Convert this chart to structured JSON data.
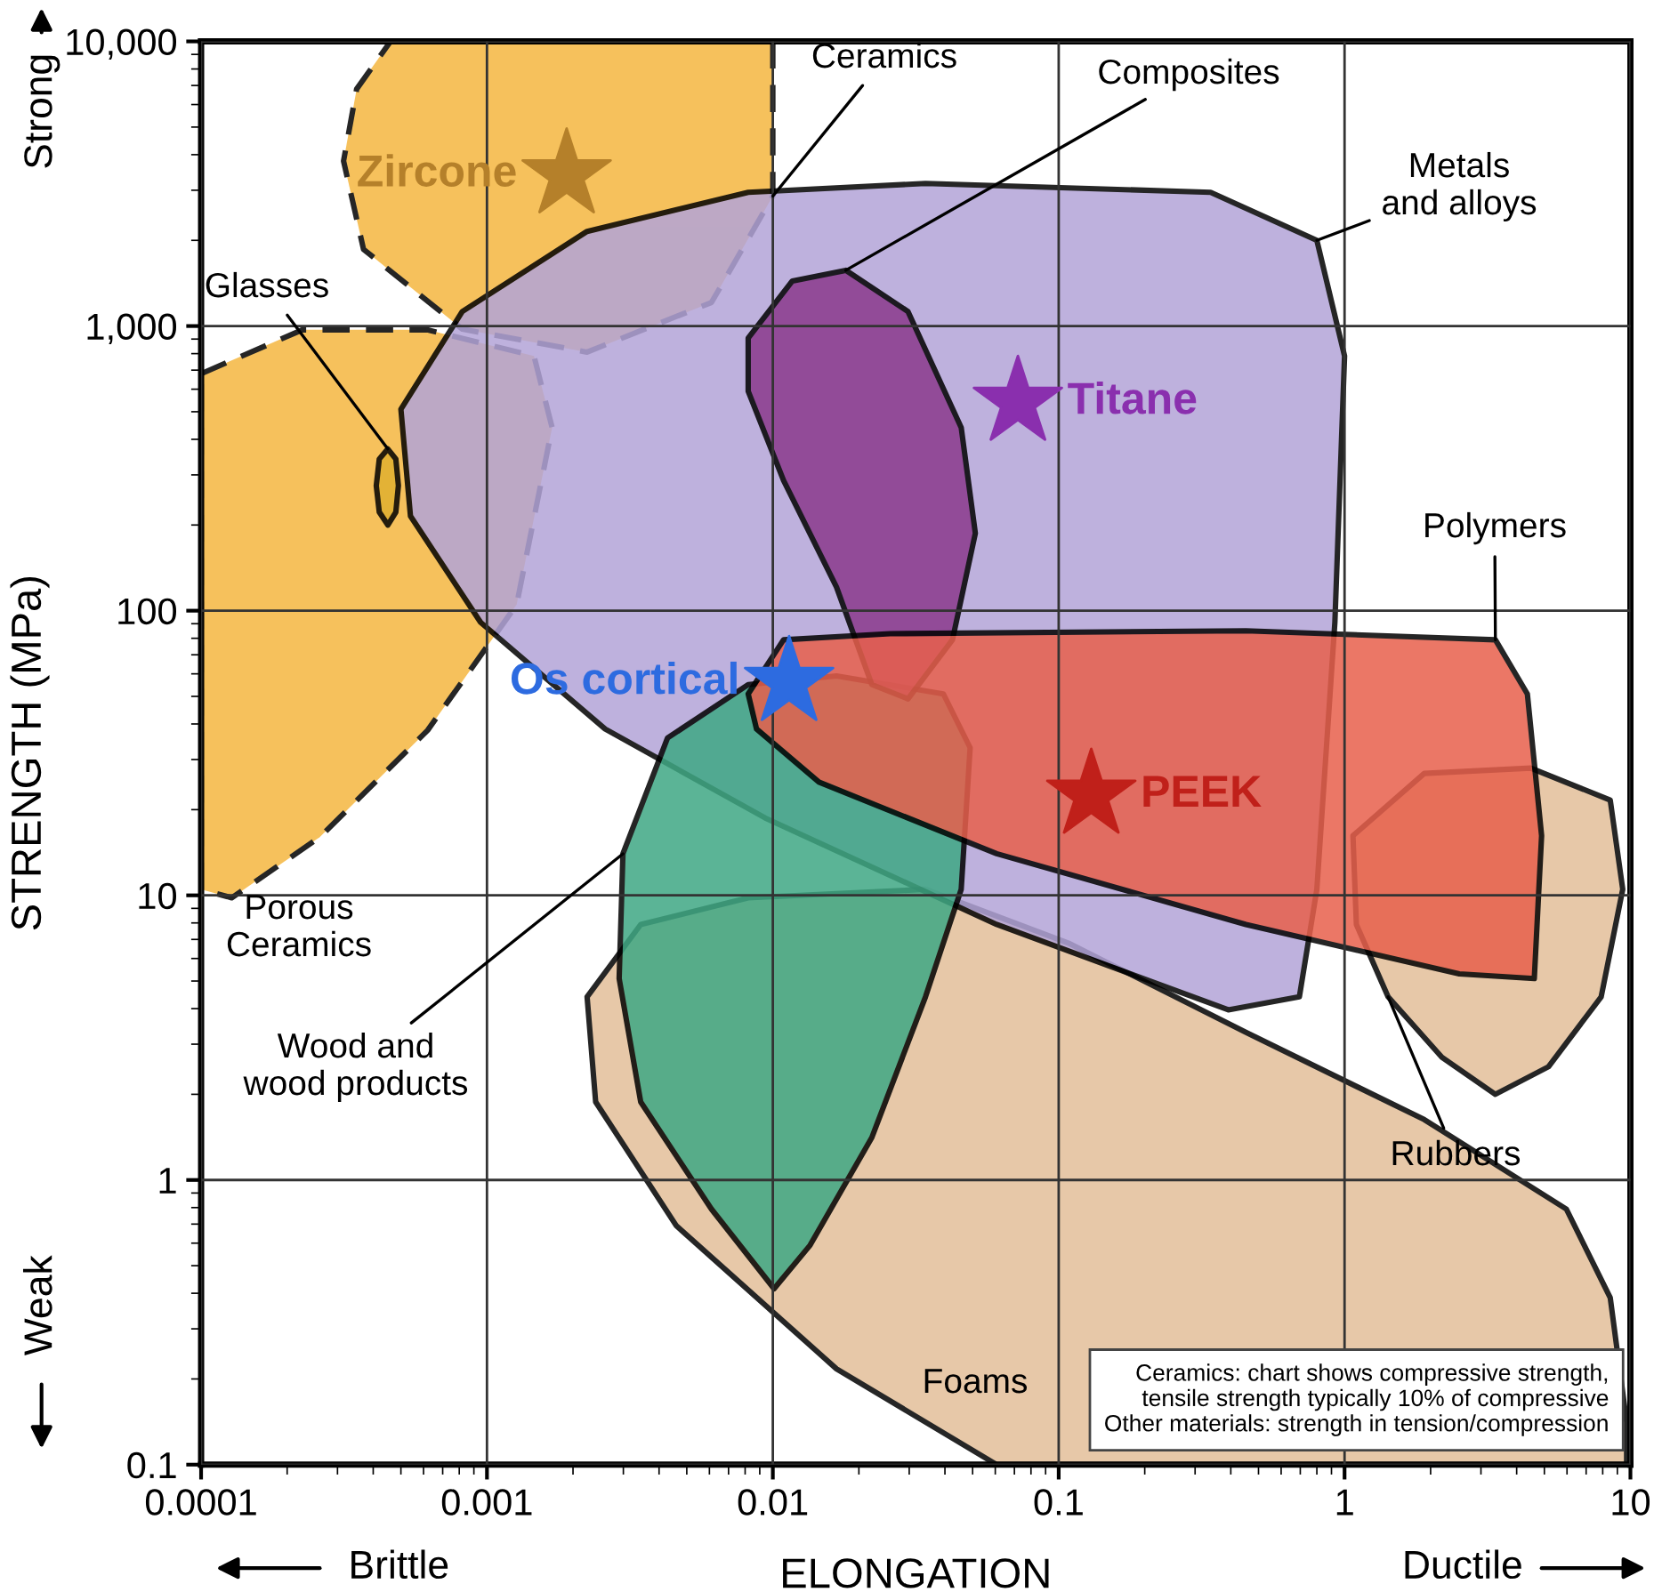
{
  "chart_data": {
    "type": "scatter",
    "xlabel": "ELONGATION",
    "ylabel": "STRENGTH (MPa)",
    "log": "xy",
    "xlim": [
      0.0001,
      10
    ],
    "ylim": [
      0.1,
      10000
    ],
    "xticks": [
      {
        "value": 0.0001,
        "label": "0.0001"
      },
      {
        "value": 0.001,
        "label": "0.001"
      },
      {
        "value": 0.01,
        "label": "0.01"
      },
      {
        "value": 0.1,
        "label": "0.1"
      },
      {
        "value": 1,
        "label": "1"
      },
      {
        "value": 10,
        "label": "10"
      }
    ],
    "yticks": [
      {
        "value": 0.1,
        "label": "0.1"
      },
      {
        "value": 1,
        "label": "1"
      },
      {
        "value": 10,
        "label": "10"
      },
      {
        "value": 100,
        "label": "100"
      },
      {
        "value": 1000,
        "label": "1,000"
      },
      {
        "value": 10000,
        "label": "10,000"
      }
    ],
    "grid": true,
    "legend": false,
    "series": [
      {
        "type": "area",
        "name": "Ceramics",
        "color": "#f5b740",
        "line_style": "dashed",
        "x": [
          0.01,
          0.01,
          0.0061,
          0.00224,
          0.00082,
          0.00037,
          0.000315,
          0.00035,
          0.00046
        ],
        "values": [
          10000,
          2860,
          1210,
          810,
          975,
          1860,
          3800,
          6800,
          10000
        ]
      },
      {
        "type": "area",
        "name": "Porous\nCeramics",
        "color": "#f5b740",
        "line_style": "dashed",
        "x": [
          0.0001,
          0.000226,
          0.000618,
          0.00146,
          0.00169,
          0.00127,
          0.00062,
          0.00026,
          0.000128,
          0.0001
        ],
        "values": [
          680,
          970,
          970,
          785,
          440,
          105,
          38,
          16,
          9.8,
          10.5
        ]
      },
      {
        "type": "area",
        "name": "Glasses",
        "color": "#e0b030",
        "line_style": "solid",
        "x": [
          0.00045,
          0.00048,
          0.00049,
          0.00048,
          0.00045,
          0.00042,
          0.00041,
          0.00042
        ],
        "values": [
          370,
          341,
          275,
          222,
          200,
          222,
          275,
          341
        ]
      },
      {
        "type": "area",
        "name": "Foams",
        "color": "#e3bf99",
        "line_style": "solid",
        "x": [
          0.00224,
          0.00345,
          0.0082,
          0.0342,
          0.108,
          0.452,
          1.9,
          5.97,
          8.5,
          9.7,
          9.7,
          0.0607,
          0.0167,
          0.0046,
          0.0024
        ],
        "values": [
          4.4,
          7.9,
          9.8,
          10.5,
          6.8,
          3.3,
          1.63,
          0.79,
          0.386,
          0.141,
          0.1,
          0.1,
          0.217,
          0.69,
          1.88
        ]
      },
      {
        "type": "area",
        "name": "Rubbers",
        "color": "#e3bf99",
        "line_style": "solid",
        "x": [
          1.07,
          1.9,
          4.48,
          8.5,
          9.4,
          7.9,
          5.17,
          3.37,
          2.19,
          1.42,
          1.1
        ],
        "values": [
          16.2,
          26.8,
          28,
          21.6,
          10.5,
          4.4,
          2.5,
          2.0,
          2.7,
          4.4,
          7.9
        ]
      },
      {
        "type": "area",
        "name": "Metals\nand alloys",
        "color": "#b3a4d8",
        "line_style": "solid",
        "x": [
          0.0005,
          0.00082,
          0.00224,
          0.0082,
          0.0342,
          0.34,
          0.8,
          1.0,
          0.925,
          0.8,
          0.695,
          0.392,
          0.0607,
          0.0094,
          0.00259,
          0.00095,
          0.00054
        ],
        "values": [
          510,
          1125,
          2150,
          2950,
          3170,
          2950,
          2000,
          785,
          91,
          10.5,
          4.4,
          3.96,
          7.9,
          18.7,
          38.4,
          91,
          215
        ]
      },
      {
        "type": "area",
        "name": "Wood and\nwood products",
        "color": "#3fa884",
        "line_style": "solid",
        "x": [
          0.00299,
          0.00428,
          0.0082,
          0.0167,
          0.0395,
          0.049,
          0.0456,
          0.0342,
          0.0222,
          0.0135,
          0.0101,
          0.0061,
          0.00345,
          0.0029
        ],
        "values": [
          14,
          35.7,
          55,
          59,
          51,
          33,
          10.5,
          4.4,
          1.41,
          0.59,
          0.415,
          0.79,
          1.88,
          5.1
        ]
      },
      {
        "type": "area",
        "name": "Composites",
        "color": "#8b3a8c",
        "line_style": "solid",
        "x": [
          0.0082,
          0.0117,
          0.018,
          0.0297,
          0.0456,
          0.0511,
          0.0425,
          0.0297,
          0.0222,
          0.0167,
          0.0109,
          0.0082
        ],
        "values": [
          907,
          1440,
          1570,
          1125,
          440,
          187,
          79,
          49,
          55,
          121,
          287,
          590
        ]
      },
      {
        "type": "area",
        "name": "Polymers",
        "color": "#e8604c",
        "line_style": "solid",
        "x": [
          0.0082,
          0.0109,
          0.0257,
          0.452,
          3.37,
          4.36,
          4.89,
          4.61,
          2.52,
          0.452,
          0.0607,
          0.0145,
          0.00877
        ],
        "values": [
          51,
          79,
          83,
          85,
          79,
          51,
          16.2,
          5.1,
          5.3,
          7.9,
          14,
          25,
          38.4
        ]
      },
      {
        "type": "scatter",
        "marker": "star",
        "name": "Zircone",
        "color": "#b5802a",
        "x": [
          0.0019
        ],
        "values": [
          3400
        ]
      },
      {
        "type": "scatter",
        "marker": "star",
        "name": "Titane",
        "color": "#8a2fae",
        "x": [
          0.072
        ],
        "values": [
          540
        ]
      },
      {
        "type": "scatter",
        "marker": "star",
        "name": "Os cortical",
        "color": "#2d6be0",
        "x": [
          0.0114
        ],
        "values": [
          56
        ]
      },
      {
        "type": "scatter",
        "marker": "star",
        "name": "PEEK",
        "color": "#c0201a",
        "x": [
          0.13
        ],
        "values": [
          22.5
        ]
      }
    ],
    "annotations": [
      "Ceramics: chart shows compressive strength,\ntensile strength typically 10% of compressive\nOther materials: strength in tension/compression",
      "Brittle",
      "Ductile",
      "Strong",
      "Weak"
    ]
  }
}
